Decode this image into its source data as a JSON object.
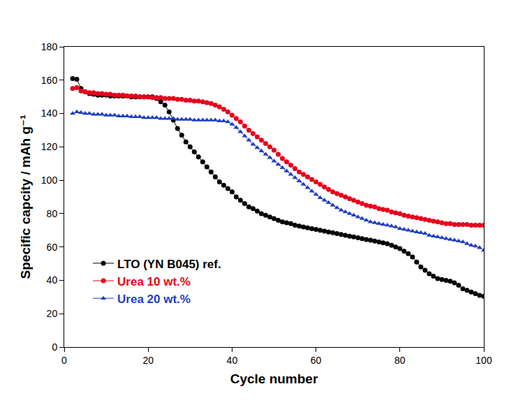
{
  "chart_data": {
    "type": "line",
    "x_label": "Cycle number",
    "y_label": "Specific capcity / mAh g⁻¹",
    "xlim": [
      0,
      100
    ],
    "ylim": [
      0,
      180
    ],
    "xticks": [
      0,
      20,
      40,
      60,
      80,
      100
    ],
    "yticks": [
      0,
      20,
      40,
      60,
      80,
      100,
      120,
      140,
      160,
      180
    ],
    "grid": false,
    "legend": "lower left",
    "x": [
      2,
      3,
      4,
      5,
      6,
      7,
      8,
      9,
      10,
      11,
      12,
      13,
      14,
      15,
      16,
      17,
      18,
      19,
      20,
      21,
      22,
      23,
      24,
      25,
      26,
      27,
      28,
      29,
      30,
      31,
      32,
      33,
      34,
      35,
      36,
      37,
      38,
      39,
      40,
      41,
      42,
      43,
      44,
      45,
      46,
      47,
      48,
      49,
      50,
      51,
      52,
      53,
      54,
      55,
      56,
      57,
      58,
      59,
      60,
      61,
      62,
      63,
      64,
      65,
      66,
      67,
      68,
      69,
      70,
      71,
      72,
      73,
      74,
      75,
      76,
      77,
      78,
      79,
      80,
      81,
      82,
      83,
      84,
      85,
      86,
      87,
      88,
      89,
      90,
      91,
      92,
      93,
      94,
      95,
      96,
      97,
      98,
      99,
      100
    ],
    "series": [
      {
        "name": "LTO (YN B045) ref.",
        "color": "#000000",
        "marker": "circle",
        "values": [
          161,
          160.5,
          155,
          153,
          152,
          151.5,
          151,
          151,
          151,
          150.5,
          150.5,
          150.5,
          150.5,
          150.5,
          150,
          150,
          150,
          150,
          150,
          150,
          149,
          147,
          145,
          141,
          136,
          131,
          127,
          123,
          120,
          117,
          114,
          111,
          108,
          105,
          102,
          99,
          97,
          95,
          93,
          90,
          88,
          86,
          84,
          83,
          81.5,
          80,
          79,
          78,
          77,
          76,
          75,
          74.5,
          74,
          73,
          72.5,
          72,
          71.5,
          71,
          70.5,
          70,
          69.5,
          69,
          68.5,
          68,
          67.5,
          67,
          66.5,
          66,
          65.5,
          65,
          64.5,
          64,
          63.5,
          63,
          62.5,
          62,
          61,
          60,
          59,
          57.5,
          56,
          54,
          51,
          48,
          46,
          44,
          42.5,
          41,
          40.5,
          40,
          39.5,
          38.5,
          37,
          35,
          34,
          33,
          32,
          31,
          30.5
        ]
      },
      {
        "name": "Urea 10 wt.%",
        "color": "#e8001c",
        "marker": "circle",
        "values": [
          155,
          155.5,
          153.5,
          153,
          152.5,
          152.5,
          152,
          152,
          151.5,
          151.5,
          151,
          151,
          151,
          150.5,
          150.5,
          150.5,
          150,
          150,
          150,
          149.5,
          149.5,
          149.5,
          149,
          149,
          149,
          148.5,
          148.5,
          148,
          148,
          147.5,
          147.5,
          147,
          146.5,
          146,
          145,
          144,
          142.5,
          141,
          139,
          137,
          135,
          132.5,
          130,
          128,
          126,
          124,
          122,
          120,
          118,
          115.5,
          113,
          111,
          109,
          107,
          105,
          103.5,
          102,
          100.5,
          99,
          97.5,
          96,
          94.5,
          93,
          92,
          91,
          90,
          89,
          88,
          87,
          86,
          85,
          84.5,
          84,
          83,
          82.5,
          82,
          81,
          80.5,
          80,
          79,
          78.5,
          78,
          77.5,
          77,
          76.5,
          76,
          75.5,
          75,
          74.5,
          74,
          74,
          73.5,
          73.5,
          73.5,
          73.5,
          73,
          73,
          73,
          73
        ]
      },
      {
        "name": "Urea 20 wt.%",
        "color": "#1f3fbf",
        "marker": "triangle-up",
        "values": [
          140,
          141,
          140.5,
          140,
          140,
          139.5,
          139.5,
          139.5,
          139,
          139,
          139,
          138.5,
          138.5,
          138.5,
          138,
          138,
          138,
          137.5,
          137.5,
          137.5,
          137.5,
          137,
          137,
          137,
          137,
          136.5,
          136.5,
          136.5,
          136.5,
          136,
          136,
          136,
          136,
          136,
          136,
          135.5,
          135.5,
          135,
          133.5,
          131.5,
          129,
          126.5,
          124,
          121.5,
          119.5,
          117.5,
          115.5,
          113.5,
          111.5,
          109.5,
          107.5,
          105.5,
          103.5,
          101.5,
          99.5,
          97.5,
          95.5,
          93.5,
          91.5,
          89.5,
          88,
          86.5,
          85,
          83.5,
          82,
          81,
          80,
          79,
          78,
          77,
          76,
          75,
          74.5,
          74,
          73.5,
          73,
          72.5,
          72,
          71,
          70.5,
          70,
          69.5,
          69,
          68.5,
          68,
          67,
          66.5,
          66,
          65.5,
          65,
          64.5,
          64,
          63.5,
          63,
          62,
          61,
          60.5,
          59.5,
          58
        ]
      }
    ]
  }
}
